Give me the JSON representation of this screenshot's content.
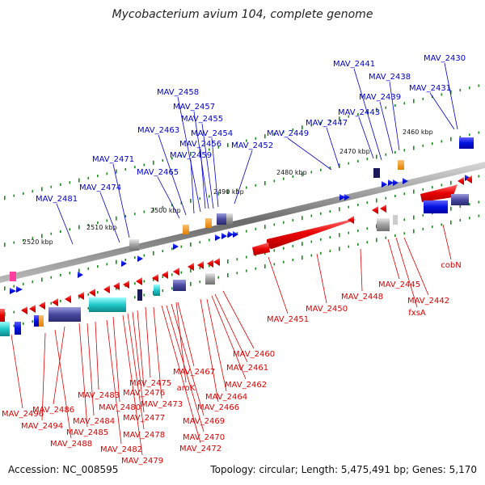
{
  "title": "Mycobacterium avium 104, complete genome",
  "footer": {
    "accession": "Accession: NC_008595",
    "summary": "Topology: circular; Length: 5,475,491 bp; Genes: 5,170"
  },
  "colors": {
    "plus_label": "#0000cc",
    "minus_label": "#dd0000",
    "backbone": "#888888",
    "tick": "#1a8a1a"
  },
  "ruler": [
    {
      "label": "2460 kbp"
    },
    {
      "label": "2470 kbp"
    },
    {
      "label": "2480 kbp"
    },
    {
      "label": "2490 kbp"
    },
    {
      "label": "2500 kbp"
    },
    {
      "label": "2510 kbp"
    },
    {
      "label": "2520 kbp"
    }
  ],
  "plus_genes": [
    {
      "label": "MAV_2430"
    },
    {
      "label": "MAV_2431"
    },
    {
      "label": "MAV_2438"
    },
    {
      "label": "MAV_2439"
    },
    {
      "label": "MAV_2441"
    },
    {
      "label": "MAV_2443"
    },
    {
      "label": "MAV_2447"
    },
    {
      "label": "MAV_2449"
    },
    {
      "label": "MAV_2452"
    },
    {
      "label": "MAV_2454"
    },
    {
      "label": "MAV_2455"
    },
    {
      "label": "MAV_2456"
    },
    {
      "label": "MAV_2457"
    },
    {
      "label": "MAV_2458"
    },
    {
      "label": "MAV_2459"
    },
    {
      "label": "MAV_2463"
    },
    {
      "label": "MAV_2465"
    },
    {
      "label": "MAV_2471"
    },
    {
      "label": "MAV_2474"
    },
    {
      "label": "MAV_2481"
    }
  ],
  "minus_genes": [
    {
      "label": "cobN"
    },
    {
      "label": "MAV_2442"
    },
    {
      "label": "fxsA"
    },
    {
      "label": "MAV_2445"
    },
    {
      "label": "MAV_2448"
    },
    {
      "label": "MAV_2450"
    },
    {
      "label": "MAV_2451"
    },
    {
      "label": "MAV_2460"
    },
    {
      "label": "MAV_2461"
    },
    {
      "label": "MAV_2462"
    },
    {
      "label": "MAV_2464"
    },
    {
      "label": "MAV_2466"
    },
    {
      "label": "aroK"
    },
    {
      "label": "MAV_2467"
    },
    {
      "label": "MAV_2469"
    },
    {
      "label": "MAV_2470"
    },
    {
      "label": "MAV_2472"
    },
    {
      "label": "MAV_2473"
    },
    {
      "label": "MAV_2475"
    },
    {
      "label": "MAV_2476"
    },
    {
      "label": "MAV_2477"
    },
    {
      "label": "MAV_2478"
    },
    {
      "label": "MAV_2479"
    },
    {
      "label": "MAV_2480"
    },
    {
      "label": "MAV_2482"
    },
    {
      "label": "MAV_2483"
    },
    {
      "label": "MAV_2484"
    },
    {
      "label": "MAV_2485"
    },
    {
      "label": "MAV_2486"
    },
    {
      "label": "MAV_2488"
    },
    {
      "label": "MAV_2494"
    },
    {
      "label": "MAV_2496"
    }
  ]
}
